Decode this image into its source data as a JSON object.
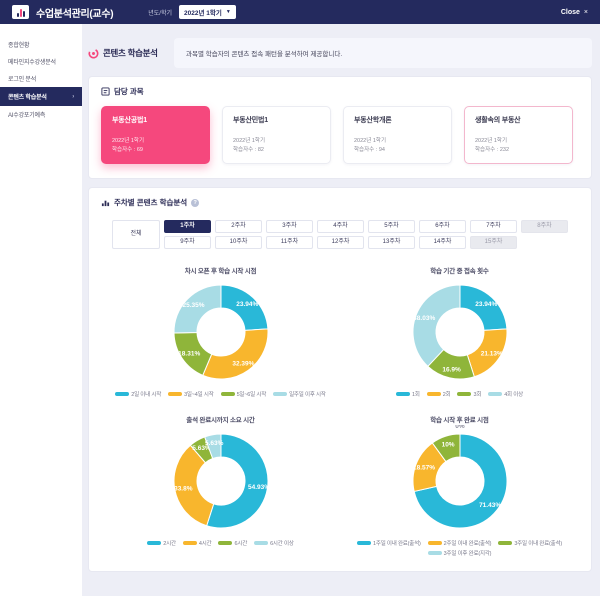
{
  "header": {
    "app_title": "수업분석관리(교수)",
    "semester_label": "년도/학기",
    "semester_value": "2022년 1학기",
    "close_label": "Close",
    "close_x": "×"
  },
  "sidebar": {
    "items": [
      {
        "label": "종합현황",
        "state": "normal"
      },
      {
        "label": "메타인지수강생분석",
        "state": "normal"
      },
      {
        "label": "로그인 분석",
        "state": "normal"
      },
      {
        "label": "콘텐츠 학습분석",
        "state": "active"
      },
      {
        "label": "AI수강포기예측",
        "state": "normal"
      }
    ]
  },
  "page": {
    "title": "콘텐츠 학습분석",
    "description": "과목별 학습자의 콘텐츠 접속 패턴을 분석하여 제공합니다."
  },
  "courses": {
    "section_title": "담당 과목",
    "cards": [
      {
        "name": "부동산공법1",
        "semester": "2022년 1학기",
        "learners": "학습자수 : 69",
        "state": "selected"
      },
      {
        "name": "부동산민법1",
        "semester": "2022년 1학기",
        "learners": "학습자수 : 82",
        "state": "normal"
      },
      {
        "name": "부동산학개론",
        "semester": "2022년 1학기",
        "learners": "학습자수 : 94",
        "state": "normal"
      },
      {
        "name": "생활속의 부동산",
        "semester": "2022년 1학기",
        "learners": "학습자수 : 232",
        "state": "outlined"
      }
    ]
  },
  "weekly": {
    "section_title": "주차별 콘텐츠 학습분석",
    "all_tab": "전체",
    "tabs_row1": [
      {
        "label": "1주차",
        "state": "active"
      },
      {
        "label": "2주차",
        "state": "normal"
      },
      {
        "label": "3주차",
        "state": "normal"
      },
      {
        "label": "4주차",
        "state": "normal"
      },
      {
        "label": "5주차",
        "state": "normal"
      },
      {
        "label": "6주차",
        "state": "normal"
      },
      {
        "label": "7주차",
        "state": "normal"
      },
      {
        "label": "8주차",
        "state": "disabled"
      }
    ],
    "tabs_row2": [
      {
        "label": "9주차",
        "state": "normal"
      },
      {
        "label": "10주차",
        "state": "normal"
      },
      {
        "label": "11주차",
        "state": "normal"
      },
      {
        "label": "12주차",
        "state": "normal"
      },
      {
        "label": "13주차",
        "state": "normal"
      },
      {
        "label": "14주차",
        "state": "normal"
      },
      {
        "label": "15주차",
        "state": "disabled"
      }
    ]
  },
  "chart_data": [
    {
      "type": "pie",
      "title": "차시 오픈 후 학습 시작 시점",
      "labels": [
        "2일 이내 시작",
        "3일~4일 시작",
        "5일~6일 시작",
        "일주일 이후 시작"
      ],
      "values": [
        23.94,
        32.39,
        18.31,
        25.35
      ],
      "colors": [
        "#29b8d8",
        "#f8b62d",
        "#8fb53a",
        "#a8dce5"
      ],
      "donut": true,
      "legend_position": "bottom",
      "start_angle": "top",
      "direction": "clockwise"
    },
    {
      "type": "pie",
      "title": "학습 기간 중 접속 횟수",
      "labels": [
        "1회",
        "2회",
        "3회",
        "4회 이상"
      ],
      "values": [
        23.94,
        21.13,
        16.9,
        38.03
      ],
      "colors": [
        "#29b8d8",
        "#f8b62d",
        "#8fb53a",
        "#a8dce5"
      ],
      "donut": true,
      "legend_position": "bottom",
      "start_angle": "top",
      "direction": "clockwise"
    },
    {
      "type": "pie",
      "title": "출석 완료시까지 소요 시간",
      "labels": [
        "2시간",
        "4시간",
        "6시간",
        "6시간 이상"
      ],
      "values": [
        54.93,
        33.8,
        5.63,
        5.63
      ],
      "colors": [
        "#29b8d8",
        "#f8b62d",
        "#8fb53a",
        "#a8dce5"
      ],
      "donut": true,
      "legend_position": "bottom",
      "start_angle": "top",
      "direction": "clockwise"
    },
    {
      "type": "pie",
      "title": "학습 시작 후 완료 시점",
      "labels": [
        "1주일 이내 완료(출석)",
        "2주일 이내 완료(출석)",
        "3주일 이내 완료(출석)",
        "3주일 이후 완료(지각)"
      ],
      "values": [
        71.43,
        18.57,
        10,
        0
      ],
      "colors": [
        "#29b8d8",
        "#f8b62d",
        "#8fb53a",
        "#a8dce5"
      ],
      "donut": true,
      "legend_position": "bottom",
      "start_angle": "top",
      "direction": "clockwise"
    }
  ],
  "colors": {
    "navy": "#242a5e",
    "accent_pink": "#f5487d",
    "cyan": "#29b8d8",
    "yellow": "#f8b62d",
    "green": "#8fb53a",
    "light_cyan": "#a8dce5",
    "background": "#edeef6"
  }
}
